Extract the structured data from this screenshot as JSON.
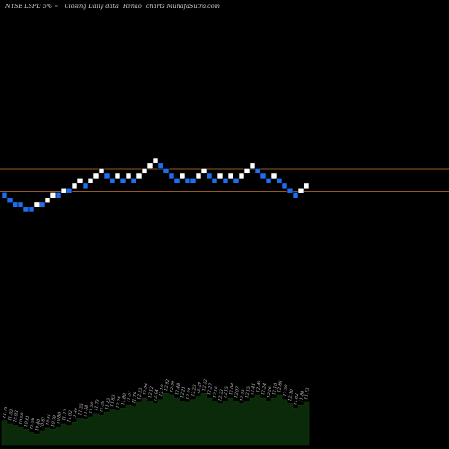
{
  "header": {
    "ticker": "NYSE LSPD",
    "pct": "5%",
    "arrow": "~",
    "description": "Closing Daily data",
    "chart_kind": "Renko",
    "site": "charts MunafaSutra.com"
  },
  "colors": {
    "background": "#000000",
    "up_brick": "#ffffff",
    "down_brick": "#1e6ef0",
    "reference_line": "#c87832",
    "volume_fill": "#0a2a0a",
    "volume_edge": "#0f3d0f"
  },
  "chart_data": {
    "type": "renko",
    "box_size_note": "5%",
    "reference_levels": [
      12.62,
      11.48
    ],
    "bricks": [
      {
        "level": 11.26,
        "dir": "down"
      },
      {
        "level": 11.02,
        "dir": "down"
      },
      {
        "level": 10.79,
        "dir": "down"
      },
      {
        "level": 10.79,
        "dir": "down"
      },
      {
        "level": 10.56,
        "dir": "down"
      },
      {
        "level": 10.56,
        "dir": "down"
      },
      {
        "level": 10.79,
        "dir": "up"
      },
      {
        "level": 10.79,
        "dir": "down"
      },
      {
        "level": 11.02,
        "dir": "up"
      },
      {
        "level": 11.26,
        "dir": "up"
      },
      {
        "level": 11.26,
        "dir": "down"
      },
      {
        "level": 11.49,
        "dir": "up"
      },
      {
        "level": 11.49,
        "dir": "down"
      },
      {
        "level": 11.73,
        "dir": "up"
      },
      {
        "level": 11.98,
        "dir": "up"
      },
      {
        "level": 11.73,
        "dir": "down"
      },
      {
        "level": 11.98,
        "dir": "up"
      },
      {
        "level": 12.22,
        "dir": "up"
      },
      {
        "level": 12.47,
        "dir": "up"
      },
      {
        "level": 12.22,
        "dir": "down"
      },
      {
        "level": 11.98,
        "dir": "down"
      },
      {
        "level": 12.22,
        "dir": "up"
      },
      {
        "level": 11.98,
        "dir": "down"
      },
      {
        "level": 12.22,
        "dir": "up"
      },
      {
        "level": 11.98,
        "dir": "down"
      },
      {
        "level": 12.22,
        "dir": "up"
      },
      {
        "level": 12.47,
        "dir": "up"
      },
      {
        "level": 12.72,
        "dir": "up"
      },
      {
        "level": 12.98,
        "dir": "up"
      },
      {
        "level": 12.72,
        "dir": "down"
      },
      {
        "level": 12.47,
        "dir": "down"
      },
      {
        "level": 12.22,
        "dir": "down"
      },
      {
        "level": 11.98,
        "dir": "down"
      },
      {
        "level": 12.22,
        "dir": "up"
      },
      {
        "level": 11.98,
        "dir": "down"
      },
      {
        "level": 11.98,
        "dir": "down"
      },
      {
        "level": 12.22,
        "dir": "up"
      },
      {
        "level": 12.47,
        "dir": "up"
      },
      {
        "level": 12.22,
        "dir": "down"
      },
      {
        "level": 11.98,
        "dir": "down"
      },
      {
        "level": 12.22,
        "dir": "up"
      },
      {
        "level": 11.98,
        "dir": "down"
      },
      {
        "level": 12.22,
        "dir": "up"
      },
      {
        "level": 11.98,
        "dir": "down"
      },
      {
        "level": 12.22,
        "dir": "up"
      },
      {
        "level": 12.47,
        "dir": "up"
      },
      {
        "level": 12.72,
        "dir": "up"
      },
      {
        "level": 12.47,
        "dir": "down"
      },
      {
        "level": 12.22,
        "dir": "down"
      },
      {
        "level": 11.98,
        "dir": "down"
      },
      {
        "level": 12.22,
        "dir": "up"
      },
      {
        "level": 11.98,
        "dir": "down"
      },
      {
        "level": 11.73,
        "dir": "down"
      },
      {
        "level": 11.49,
        "dir": "down"
      },
      {
        "level": 11.26,
        "dir": "down"
      },
      {
        "level": 11.49,
        "dir": "up"
      },
      {
        "level": 11.73,
        "dir": "up"
      }
    ],
    "volume": [
      0.34,
      0.3,
      0.28,
      0.25,
      0.22,
      0.18,
      0.16,
      0.2,
      0.24,
      0.22,
      0.26,
      0.3,
      0.28,
      0.32,
      0.38,
      0.36,
      0.4,
      0.44,
      0.42,
      0.46,
      0.5,
      0.48,
      0.52,
      0.56,
      0.54,
      0.6,
      0.66,
      0.62,
      0.58,
      0.64,
      0.72,
      0.7,
      0.66,
      0.62,
      0.6,
      0.64,
      0.68,
      0.72,
      0.66,
      0.62,
      0.58,
      0.62,
      0.66,
      0.62,
      0.58,
      0.62,
      0.66,
      0.7,
      0.66,
      0.62,
      0.66,
      0.7,
      0.64,
      0.58,
      0.52,
      0.56,
      0.6
    ],
    "volume_labels": [
      "11.75",
      "11.02",
      "10.93",
      "10.58",
      "10.61",
      "10.58",
      "10.40",
      "10.61",
      "10.51",
      "10.79",
      "10.80",
      "11.12",
      "11.02",
      "11.40",
      "11.35",
      "11.58",
      "11.20",
      "11.79",
      "11.39",
      "11.83",
      "11.83",
      "12.04",
      "11.80",
      "11.51",
      "11.79",
      "12.23",
      "12.54",
      "12.12",
      "12.04",
      "12.10",
      "12.92",
      "12.99",
      "12.48",
      "12.21",
      "12.04",
      "12.23",
      "12.29",
      "12.52",
      "12.27",
      "12.16",
      "12.23",
      "12.15",
      "12.04",
      "12.07",
      "11.95",
      "12.15",
      "12.41",
      "12.45",
      "12.24",
      "12.26",
      "12.10",
      "12.66",
      "12.38",
      "12.10",
      "11.82",
      "11.80",
      "11.73"
    ]
  }
}
